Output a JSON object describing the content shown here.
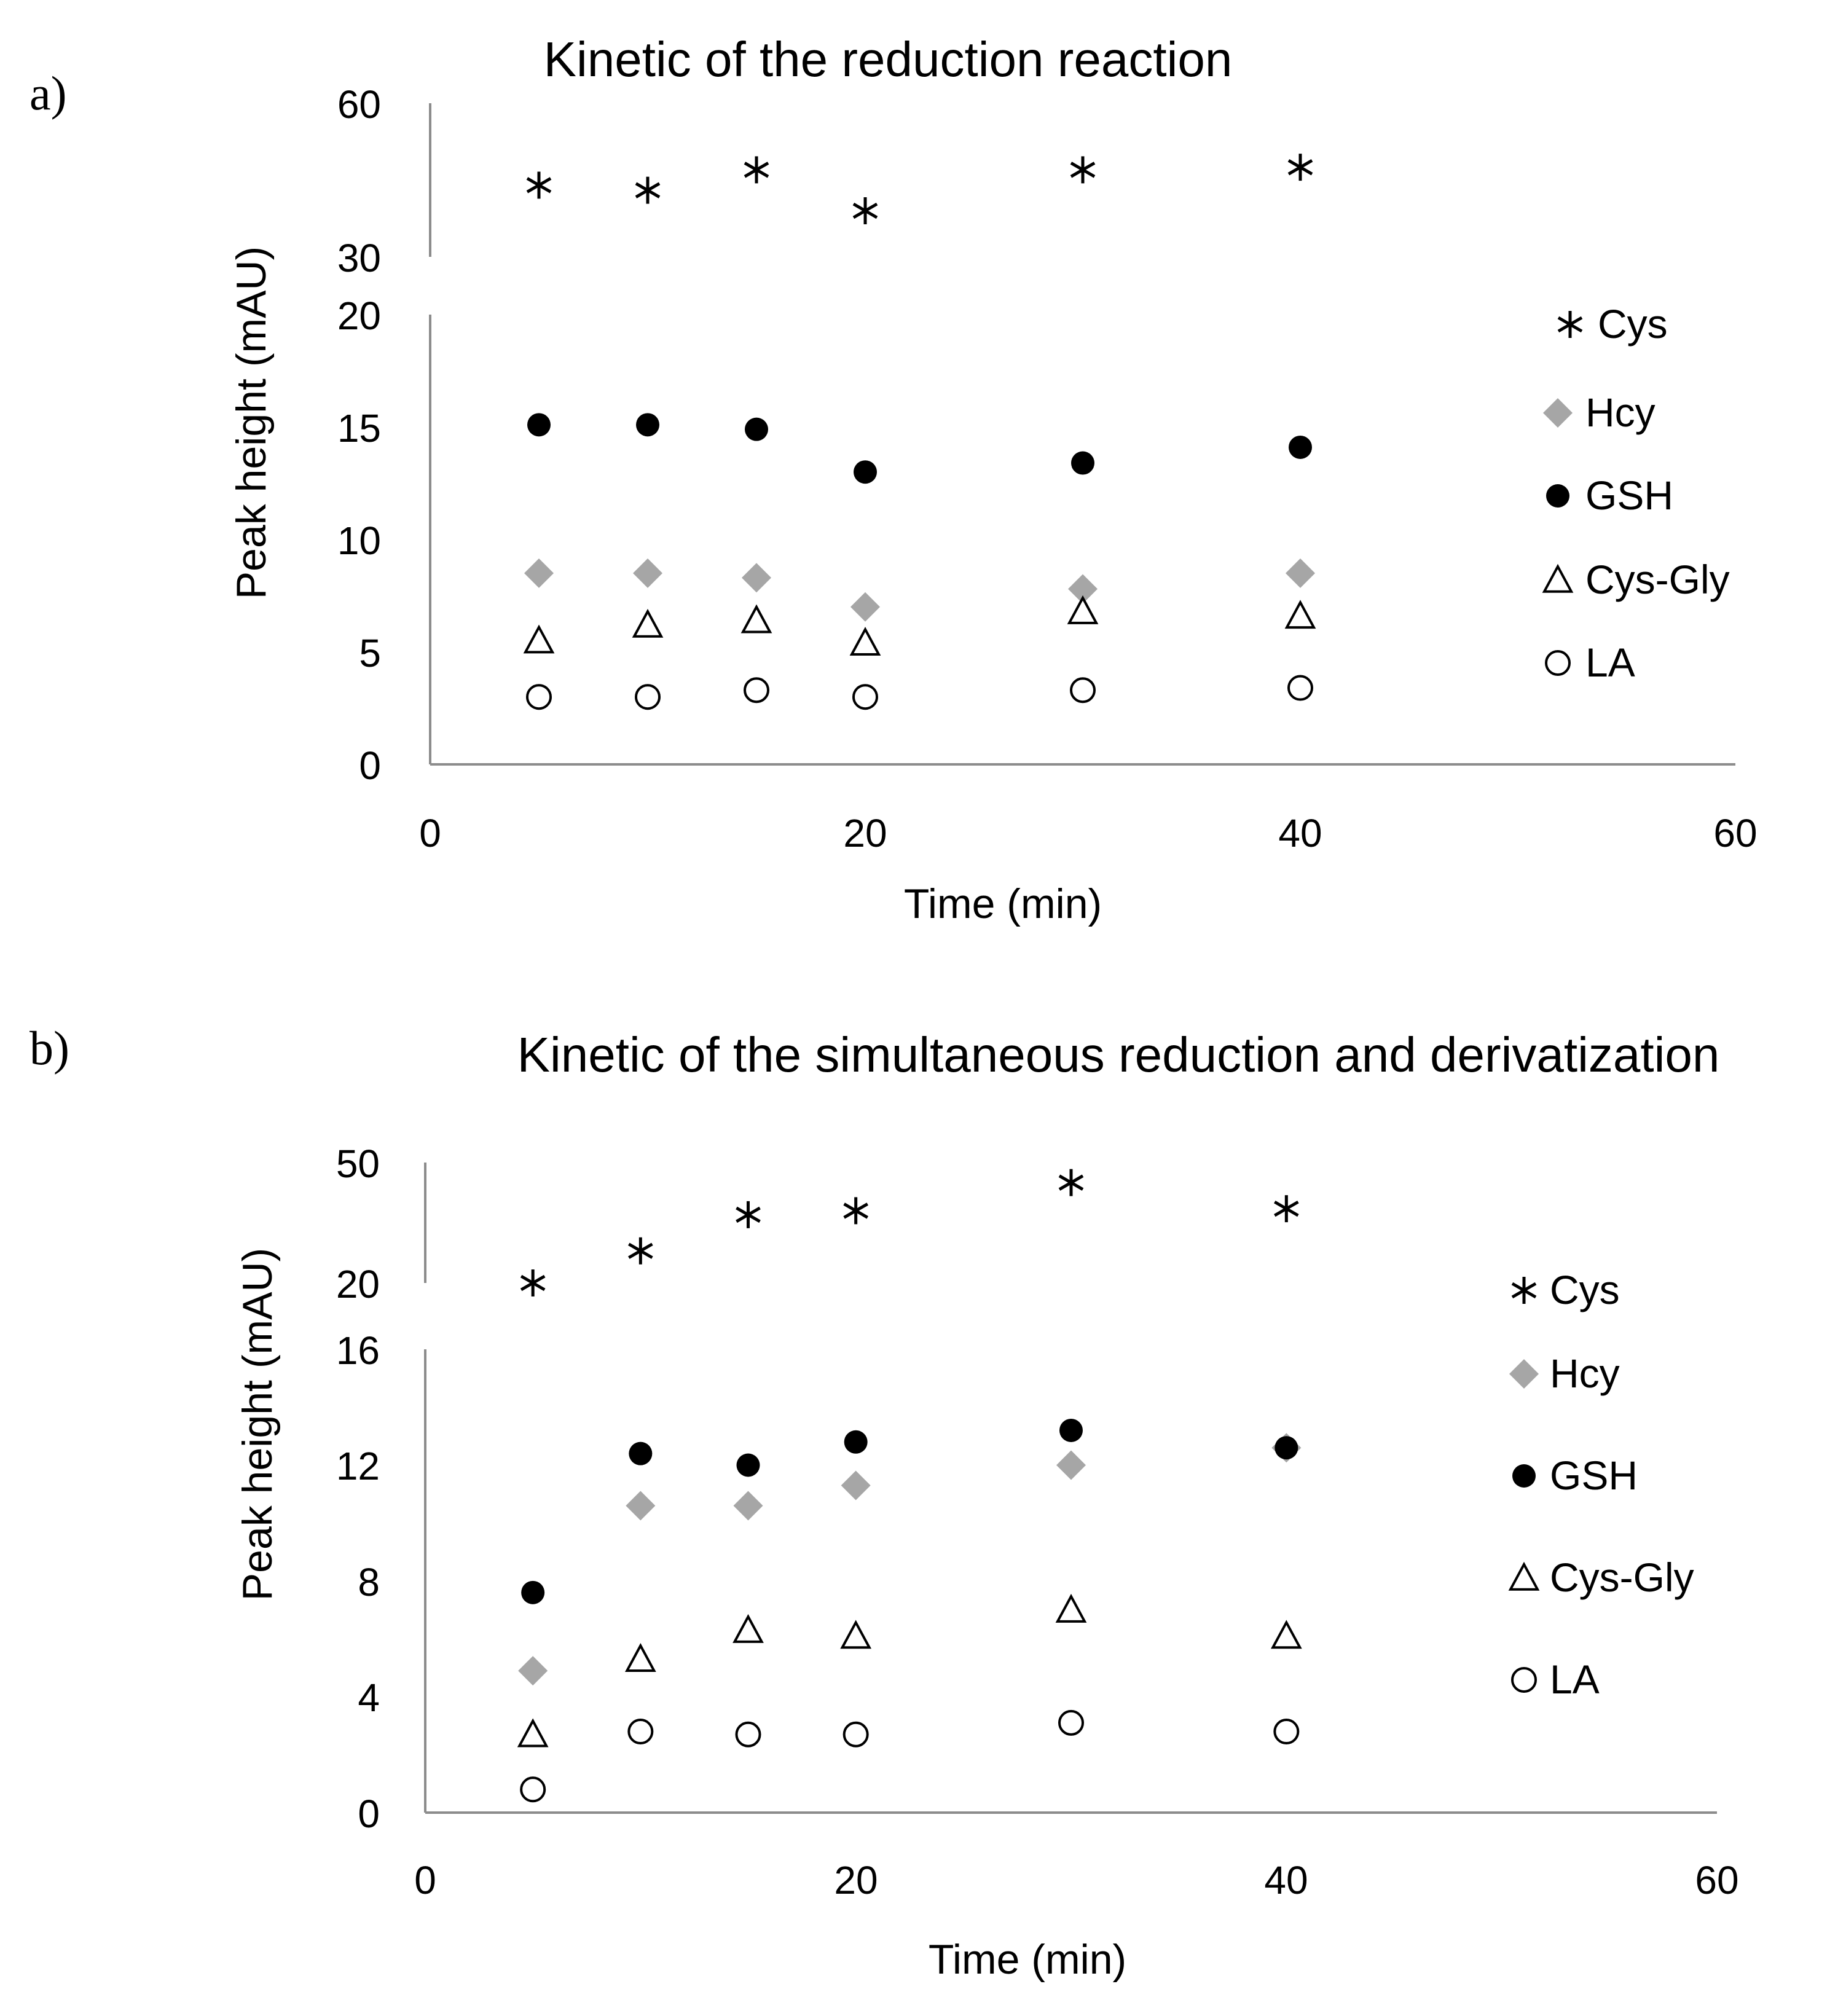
{
  "figure": {
    "colors": {
      "axis": "#8c8c8c",
      "dark": "#000000",
      "gray": "#a6a6a6",
      "white": "#ffffff"
    }
  },
  "chart_data": [
    {
      "panel": "a)",
      "type": "scatter",
      "title": "Kinetic of the reduction reaction",
      "xlabel": "Time (min)",
      "ylabel": "Peak height (mAU)",
      "xlim": [
        0,
        60
      ],
      "x_ticks": [
        "0",
        "20",
        "40",
        "60"
      ],
      "y_break": {
        "lower": [
          0,
          20
        ],
        "upper": [
          30,
          60
        ]
      },
      "y_ticks_lower": [
        "0",
        "5",
        "10",
        "15",
        "20"
      ],
      "y_ticks_upper": [
        "30",
        "60"
      ],
      "legend": "right",
      "series": [
        {
          "name": "Cys",
          "marker": "asterisk",
          "color": "#000000",
          "x": [
            5,
            10,
            15,
            20,
            30,
            40
          ],
          "y": [
            44,
            43,
            47,
            39,
            47,
            47.5
          ]
        },
        {
          "name": "Hcy",
          "marker": "diamond",
          "color": "#a6a6a6",
          "x": [
            5,
            10,
            15,
            20,
            30,
            40
          ],
          "y": [
            8.5,
            8.5,
            8.3,
            7.0,
            7.8,
            8.5
          ]
        },
        {
          "name": "GSH",
          "marker": "circle-filled",
          "color": "#000000",
          "x": [
            5,
            10,
            15,
            20,
            30,
            40
          ],
          "y": [
            15.1,
            15.1,
            14.9,
            13.0,
            13.4,
            14.1
          ]
        },
        {
          "name": "Cys-Gly",
          "marker": "triangle-open",
          "color": "#000000",
          "x": [
            5,
            10,
            15,
            20,
            30,
            40
          ],
          "y": [
            5.5,
            6.2,
            6.4,
            5.4,
            6.8,
            6.6
          ]
        },
        {
          "name": "LA",
          "marker": "circle-open",
          "color": "#000000",
          "x": [
            5,
            10,
            15,
            20,
            30,
            40
          ],
          "y": [
            3.0,
            3.0,
            3.3,
            3.0,
            3.3,
            3.4
          ]
        }
      ]
    },
    {
      "panel": "b)",
      "type": "scatter",
      "title": "Kinetic of the simultaneous reduction and derivatization",
      "xlabel": "Time (min)",
      "ylabel": "Peak height (mAU)",
      "xlim": [
        0,
        60
      ],
      "x_ticks": [
        "0",
        "20",
        "40",
        "60"
      ],
      "y_break": {
        "lower": [
          0,
          16
        ],
        "upper": [
          20,
          50
        ]
      },
      "y_ticks_lower": [
        "0",
        "4",
        "8",
        "12",
        "16"
      ],
      "y_ticks_upper": [
        "20",
        "50"
      ],
      "legend": "right",
      "series": [
        {
          "name": "Cys",
          "marker": "asterisk",
          "color": "#000000",
          "x": [
            5,
            10,
            15,
            20,
            30,
            40
          ],
          "y": [
            20,
            28,
            37,
            38,
            45,
            38.5
          ]
        },
        {
          "name": "Hcy",
          "marker": "diamond",
          "color": "#a6a6a6",
          "x": [
            5,
            10,
            15,
            20,
            30,
            40
          ],
          "y": [
            4.9,
            10.6,
            10.6,
            11.3,
            12.0,
            12.6
          ]
        },
        {
          "name": "GSH",
          "marker": "circle-filled",
          "color": "#000000",
          "x": [
            5,
            10,
            15,
            20,
            30,
            40
          ],
          "y": [
            7.6,
            12.4,
            12.0,
            12.8,
            13.2,
            12.6
          ]
        },
        {
          "name": "Cys-Gly",
          "marker": "triangle-open",
          "color": "#000000",
          "x": [
            5,
            10,
            15,
            20,
            30,
            40
          ],
          "y": [
            2.7,
            5.3,
            6.3,
            6.1,
            7.0,
            6.1
          ]
        },
        {
          "name": "LA",
          "marker": "circle-open",
          "color": "#000000",
          "x": [
            5,
            10,
            15,
            20,
            30,
            40
          ],
          "y": [
            0.8,
            2.8,
            2.7,
            2.7,
            3.1,
            2.8
          ]
        }
      ]
    }
  ]
}
